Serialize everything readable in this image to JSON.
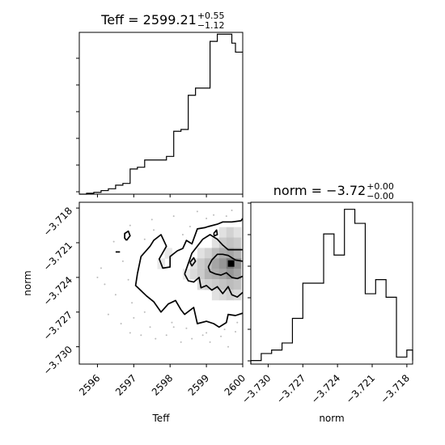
{
  "chart_data": [
    {
      "type": "histogram",
      "panel": "Teff marginal",
      "title": {
        "name": "Teff",
        "value": "2599.21",
        "plus": "+0.55",
        "minus": "−1.12"
      },
      "xlim": [
        2595.5,
        2600.0
      ],
      "yticks_visible": false,
      "bins": {
        "edges": [
          2595.5,
          2595.7,
          2595.9,
          2596.1,
          2596.3,
          2596.5,
          2596.7,
          2596.9,
          2597.1,
          2597.3,
          2597.5,
          2597.7,
          2597.9,
          2598.1,
          2598.3,
          2598.5,
          2598.7,
          2598.9,
          2599.1,
          2599.3,
          2599.5,
          2599.7,
          2599.8,
          2600.0
        ],
        "counts": [
          0,
          0.5,
          1,
          2,
          3,
          5,
          6,
          14,
          15,
          19,
          19,
          19,
          21,
          35,
          36,
          55,
          59,
          59,
          85,
          89,
          89,
          84,
          79
        ]
      },
      "ylim": [
        0,
        90
      ]
    },
    {
      "type": "histogram",
      "panel": "norm marginal",
      "title": {
        "name": "norm",
        "value": "−3.72",
        "plus": "+0.00",
        "minus": "−0.00"
      },
      "xlim": [
        -3.7315,
        -3.7175
      ],
      "xlabel": "norm",
      "xticks": [
        "−3.730",
        "−3.727",
        "−3.724",
        "−3.721",
        "−3.718"
      ],
      "xtick_values": [
        -3.73,
        -3.727,
        -3.724,
        -3.721,
        -3.718
      ],
      "yticks_visible": false,
      "bins": {
        "edges": [
          -3.7315,
          -3.7306,
          -3.7297,
          -3.7288,
          -3.7279,
          -3.727,
          -3.7261,
          -3.7252,
          -3.7243,
          -3.7234,
          -3.7225,
          -3.7216,
          -3.7207,
          -3.7198,
          -3.7189,
          -3.718,
          -3.7175
        ],
        "counts": [
          1,
          3,
          4,
          6,
          13,
          23,
          23,
          37,
          31,
          44,
          40,
          20,
          24,
          19,
          2,
          4,
          1
        ]
      },
      "ylim": [
        0,
        46
      ]
    },
    {
      "type": "contour",
      "panel": "2D joint",
      "xlabel": "Teff",
      "ylabel": "norm",
      "xlim": [
        2595.5,
        2600.0
      ],
      "ylim": [
        -3.7315,
        -3.7175
      ],
      "xticks": [
        "2596",
        "2597",
        "2598",
        "2599",
        "2600"
      ],
      "xtick_values": [
        2596,
        2597,
        2598,
        2599,
        2600
      ],
      "yticks": [
        "−3.718",
        "−3.721",
        "−3.724",
        "−3.727",
        "−3.730"
      ],
      "ytick_values": [
        -3.718,
        -3.721,
        -3.724,
        -3.727,
        -3.73
      ],
      "peak": {
        "x": 2599.68,
        "y": -3.7228
      },
      "contours": [
        [
          [
            2597.1,
            -3.7237
          ],
          [
            2597.2,
            -3.7222
          ],
          [
            2597.45,
            -3.7213
          ],
          [
            2597.55,
            -3.7208
          ],
          [
            2597.75,
            -3.7203
          ],
          [
            2597.9,
            -3.7213
          ],
          [
            2597.7,
            -3.7224
          ],
          [
            2597.8,
            -3.7232
          ],
          [
            2598.0,
            -3.7231
          ],
          [
            2598.0,
            -3.7222
          ],
          [
            2598.2,
            -3.7217
          ],
          [
            2598.35,
            -3.7215
          ],
          [
            2598.45,
            -3.7208
          ],
          [
            2598.6,
            -3.7211
          ],
          [
            2598.75,
            -3.7198
          ],
          [
            2598.95,
            -3.7197
          ],
          [
            2599.05,
            -3.7196
          ],
          [
            2599.3,
            -3.7194
          ],
          [
            2599.45,
            -3.7192
          ],
          [
            2599.7,
            -3.7192
          ],
          [
            2599.95,
            -3.7191
          ],
          [
            2600.0,
            -3.7189
          ]
        ],
        [
          [
            2600.0,
            -3.7271
          ],
          [
            2599.8,
            -3.7273
          ],
          [
            2599.6,
            -3.7272
          ],
          [
            2599.55,
            -3.7279
          ],
          [
            2599.35,
            -3.7283
          ],
          [
            2599.2,
            -3.728
          ],
          [
            2599.0,
            -3.7278
          ],
          [
            2598.75,
            -3.728
          ],
          [
            2598.65,
            -3.7266
          ],
          [
            2598.4,
            -3.7272
          ],
          [
            2598.3,
            -3.7268
          ],
          [
            2598.15,
            -3.726
          ],
          [
            2597.95,
            -3.7263
          ],
          [
            2597.75,
            -3.727
          ],
          [
            2597.55,
            -3.7261
          ],
          [
            2597.35,
            -3.7256
          ],
          [
            2597.15,
            -3.725
          ],
          [
            2597.05,
            -3.7247
          ],
          [
            2597.1,
            -3.7237
          ]
        ],
        [
          [
            2598.4,
            -3.7237
          ],
          [
            2598.5,
            -3.7228
          ],
          [
            2598.6,
            -3.7219
          ],
          [
            2598.75,
            -3.7213
          ],
          [
            2598.9,
            -3.7207
          ],
          [
            2599.1,
            -3.7203
          ],
          [
            2599.3,
            -3.7207
          ],
          [
            2599.45,
            -3.7212
          ],
          [
            2599.6,
            -3.7216
          ],
          [
            2599.8,
            -3.7216
          ],
          [
            2600.0,
            -3.7216
          ]
        ],
        [
          [
            2600.0,
            -3.7253
          ],
          [
            2599.85,
            -3.7257
          ],
          [
            2599.7,
            -3.7255
          ],
          [
            2599.6,
            -3.7248
          ],
          [
            2599.45,
            -3.7254
          ],
          [
            2599.3,
            -3.7248
          ],
          [
            2599.15,
            -3.7251
          ],
          [
            2599.0,
            -3.7247
          ],
          [
            2598.85,
            -3.7249
          ],
          [
            2598.8,
            -3.724
          ],
          [
            2598.65,
            -3.7244
          ],
          [
            2598.5,
            -3.7243
          ],
          [
            2598.4,
            -3.7237
          ]
        ],
        [
          [
            2599.05,
            -3.7231
          ],
          [
            2599.15,
            -3.7225
          ],
          [
            2599.3,
            -3.722
          ],
          [
            2599.45,
            -3.722
          ],
          [
            2599.6,
            -3.7221
          ],
          [
            2599.8,
            -3.7225
          ],
          [
            2600.0,
            -3.7226
          ]
        ],
        [
          [
            2600.0,
            -3.7239
          ],
          [
            2599.85,
            -3.7241
          ],
          [
            2599.7,
            -3.724
          ],
          [
            2599.55,
            -3.7236
          ],
          [
            2599.4,
            -3.7238
          ],
          [
            2599.25,
            -3.7237
          ],
          [
            2599.1,
            -3.7235
          ],
          [
            2599.05,
            -3.7231
          ]
        ],
        [
          [
            2596.8,
            -3.7208
          ],
          [
            2596.9,
            -3.7204
          ],
          [
            2596.85,
            -3.72
          ],
          [
            2596.75,
            -3.7202
          ],
          [
            2596.75,
            -3.7206
          ],
          [
            2596.8,
            -3.7208
          ]
        ],
        [
          [
            2596.5,
            -3.7218
          ],
          [
            2596.62,
            -3.7218
          ]
        ],
        [
          [
            2598.55,
            -3.7227
          ],
          [
            2598.65,
            -3.7223
          ],
          [
            2598.7,
            -3.7226
          ],
          [
            2598.6,
            -3.723
          ],
          [
            2598.55,
            -3.7227
          ]
        ],
        [
          [
            2599.2,
            -3.7202
          ],
          [
            2599.28,
            -3.7199
          ],
          [
            2599.3,
            -3.7203
          ],
          [
            2599.22,
            -3.7204
          ],
          [
            2599.2,
            -3.7202
          ]
        ]
      ],
      "density_cells": [
        {
          "x": 2599.45,
          "y": -3.7201,
          "level": 0.2
        },
        {
          "x": 2599.65,
          "y": -3.7201,
          "level": 0.3
        },
        {
          "x": 2599.85,
          "y": -3.7201,
          "level": 0.2
        },
        {
          "x": 2599.25,
          "y": -3.721,
          "level": 0.2
        },
        {
          "x": 2599.45,
          "y": -3.721,
          "level": 0.35
        },
        {
          "x": 2599.65,
          "y": -3.721,
          "level": 0.4
        },
        {
          "x": 2599.85,
          "y": -3.721,
          "level": 0.35
        },
        {
          "x": 2598.85,
          "y": -3.7219,
          "level": 0.2
        },
        {
          "x": 2599.05,
          "y": -3.7219,
          "level": 0.3
        },
        {
          "x": 2599.25,
          "y": -3.7219,
          "level": 0.45
        },
        {
          "x": 2599.45,
          "y": -3.7219,
          "level": 0.55
        },
        {
          "x": 2599.65,
          "y": -3.7219,
          "level": 0.6
        },
        {
          "x": 2599.85,
          "y": -3.7219,
          "level": 0.5
        },
        {
          "x": 2598.65,
          "y": -3.7228,
          "level": 0.2
        },
        {
          "x": 2598.85,
          "y": -3.7228,
          "level": 0.35
        },
        {
          "x": 2599.05,
          "y": -3.7228,
          "level": 0.45
        },
        {
          "x": 2599.25,
          "y": -3.7228,
          "level": 0.6
        },
        {
          "x": 2599.45,
          "y": -3.7228,
          "level": 0.7
        },
        {
          "x": 2599.65,
          "y": -3.7228,
          "level": 0.9
        },
        {
          "x": 2599.85,
          "y": -3.7228,
          "level": 0.75
        },
        {
          "x": 2598.45,
          "y": -3.7237,
          "level": 0.15
        },
        {
          "x": 2598.65,
          "y": -3.7237,
          "level": 0.25
        },
        {
          "x": 2598.85,
          "y": -3.7237,
          "level": 0.35
        },
        {
          "x": 2599.05,
          "y": -3.7237,
          "level": 0.5
        },
        {
          "x": 2599.25,
          "y": -3.7237,
          "level": 0.55
        },
        {
          "x": 2599.45,
          "y": -3.7237,
          "level": 0.6
        },
        {
          "x": 2599.65,
          "y": -3.7237,
          "level": 0.7
        },
        {
          "x": 2599.85,
          "y": -3.7237,
          "level": 0.6
        },
        {
          "x": 2598.85,
          "y": -3.7246,
          "level": 0.25
        },
        {
          "x": 2599.05,
          "y": -3.7246,
          "level": 0.3
        },
        {
          "x": 2599.25,
          "y": -3.7246,
          "level": 0.35
        },
        {
          "x": 2599.45,
          "y": -3.7246,
          "level": 0.4
        },
        {
          "x": 2599.65,
          "y": -3.7246,
          "level": 0.45
        },
        {
          "x": 2599.85,
          "y": -3.7246,
          "level": 0.4
        },
        {
          "x": 2599.25,
          "y": -3.7255,
          "level": 0.2
        },
        {
          "x": 2599.45,
          "y": -3.7255,
          "level": 0.25
        },
        {
          "x": 2599.65,
          "y": -3.7255,
          "level": 0.3
        },
        {
          "x": 2599.85,
          "y": -3.7255,
          "level": 0.25
        },
        {
          "x": 2597.95,
          "y": -3.7219,
          "level": 0.15
        },
        {
          "x": 2597.75,
          "y": -3.7228,
          "level": 0.15
        }
      ],
      "scatter_points": [
        [
          2596.9,
          -3.7195
        ],
        [
          2597.5,
          -3.719
        ],
        [
          2598.1,
          -3.7187
        ],
        [
          2598.75,
          -3.7183
        ],
        [
          2599.2,
          -3.7186
        ],
        [
          2599.7,
          -3.7182
        ],
        [
          2596.45,
          -3.7209
        ],
        [
          2596.1,
          -3.7232
        ],
        [
          2596.0,
          -3.724
        ],
        [
          2596.2,
          -3.7246
        ],
        [
          2596.5,
          -3.7255
        ],
        [
          2596.3,
          -3.7272
        ],
        [
          2596.65,
          -3.728
        ],
        [
          2596.9,
          -3.7288
        ],
        [
          2597.2,
          -3.729
        ],
        [
          2597.45,
          -3.7283
        ],
        [
          2597.6,
          -3.7293
        ],
        [
          2597.9,
          -3.729
        ],
        [
          2598.1,
          -3.7283
        ],
        [
          2598.3,
          -3.7296
        ],
        [
          2598.6,
          -3.7293
        ],
        [
          2598.9,
          -3.729
        ],
        [
          2599.1,
          -3.7296
        ],
        [
          2599.4,
          -3.7291
        ],
        [
          2599.6,
          -3.73
        ],
        [
          2599.8,
          -3.7287
        ],
        [
          2597.0,
          -3.7275
        ],
        [
          2597.3,
          -3.727
        ],
        [
          2598.05,
          -3.7279
        ],
        [
          2598.45,
          -3.7284
        ],
        [
          2599.0,
          -3.7288
        ],
        [
          2599.5,
          -3.7285
        ],
        [
          2599.85,
          -3.7279
        ],
        [
          2596.7,
          -3.7226
        ],
        [
          2596.85,
          -3.7242
        ],
        [
          2596.95,
          -3.7262
        ],
        [
          2597.3,
          -3.7207
        ],
        [
          2597.55,
          -3.7199
        ],
        [
          2598.35,
          -3.7203
        ],
        [
          2598.55,
          -3.7196
        ],
        [
          2599.0,
          -3.7189
        ],
        [
          2599.55,
          -3.7187
        ]
      ]
    }
  ]
}
